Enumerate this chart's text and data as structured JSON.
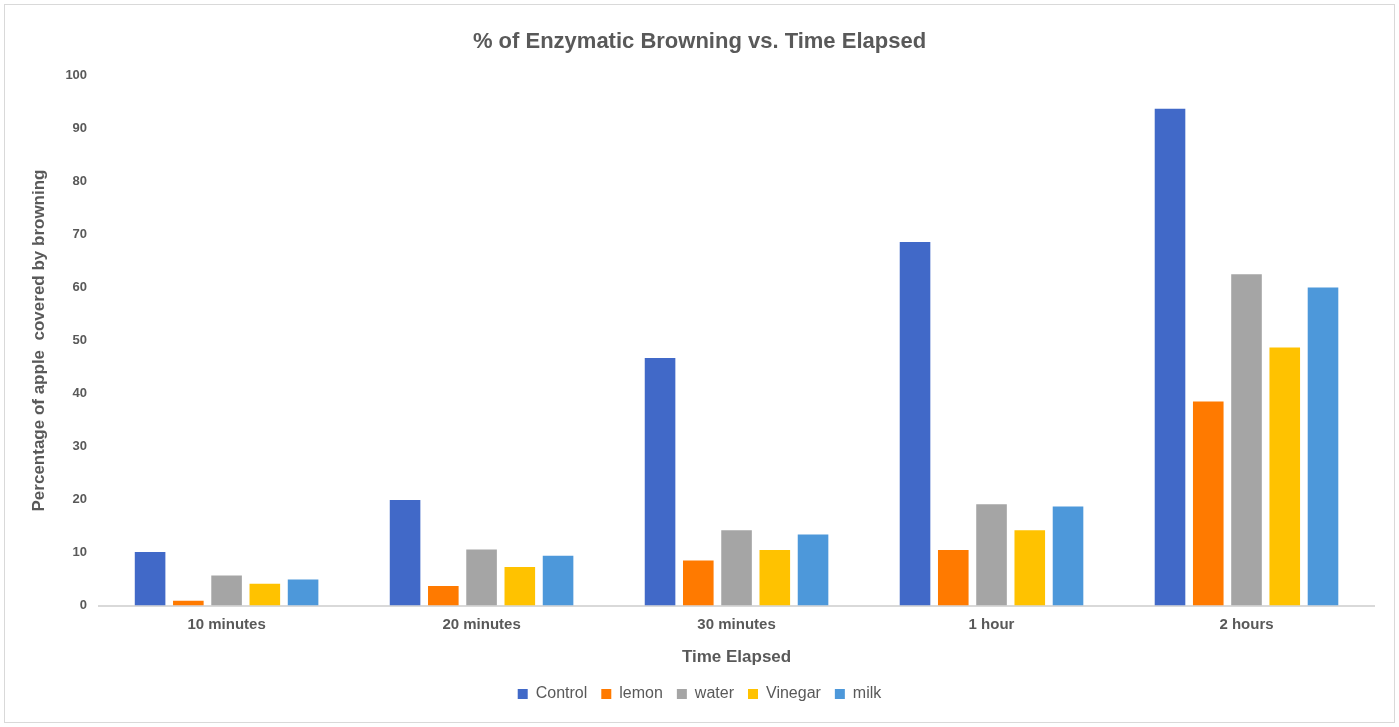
{
  "chart_data": {
    "type": "bar",
    "title": "% of Enzymatic Browning vs. Time Elapsed",
    "xlabel": "Time Elapsed",
    "ylabel": "Percentage of apple  covered by browning",
    "categories": [
      "10 minutes",
      "20 minutes",
      "30 minutes",
      "1 hour",
      "2 hours"
    ],
    "series": [
      {
        "name": "Control",
        "color": "#4169c8",
        "values": [
          10.1,
          19.9,
          46.7,
          68.6,
          93.7
        ]
      },
      {
        "name": "lemon",
        "color": "#ff7a00",
        "values": [
          0.9,
          3.7,
          8.5,
          10.5,
          38.5
        ]
      },
      {
        "name": "water",
        "color": "#a5a5a5",
        "values": [
          5.7,
          10.6,
          14.2,
          19.1,
          62.5
        ]
      },
      {
        "name": "Vinegar",
        "color": "#ffc200",
        "values": [
          4.1,
          7.3,
          10.5,
          14.2,
          48.7
        ]
      },
      {
        "name": "milk",
        "color": "#4d98da",
        "values": [
          4.9,
          9.4,
          13.4,
          18.7,
          60.0
        ]
      }
    ],
    "ylim": [
      0,
      100
    ],
    "yticks": [
      0,
      10,
      20,
      30,
      40,
      50,
      60,
      70,
      80,
      90,
      100
    ],
    "grid": false,
    "legend": "bottom"
  }
}
